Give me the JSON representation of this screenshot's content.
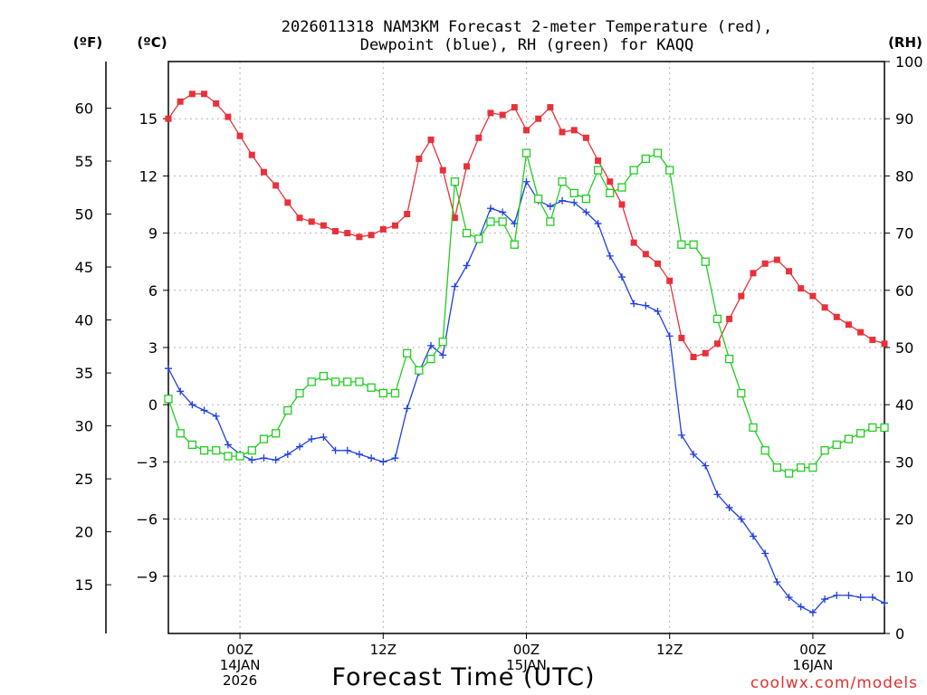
{
  "chart_data": {
    "type": "line",
    "title_line1": "2026011318 NAM3KM Forecast 2-meter Temperature (red),",
    "title_line2": "Dewpoint (blue), RH (green) for KAQQ",
    "xlabel": "Forecast Time (UTC)",
    "credit": "coolwx.com/models",
    "units": {
      "fahrenheit": "(ºF)",
      "celsius": "(ºC)",
      "rh": "(RH)"
    },
    "x_hours_range": [
      -6,
      54
    ],
    "x_ticks": [
      {
        "hour": 0,
        "lines": [
          "00Z",
          "14JAN",
          "2026"
        ]
      },
      {
        "hour": 12,
        "lines": [
          "12Z"
        ]
      },
      {
        "hour": 24,
        "lines": [
          "00Z",
          "15JAN"
        ]
      },
      {
        "hour": 36,
        "lines": [
          "12Z"
        ]
      },
      {
        "hour": 48,
        "lines": [
          "00Z",
          "16JAN"
        ]
      }
    ],
    "y_celsius_range": [
      -12,
      18
    ],
    "y_celsius_ticks": [
      "15",
      "12",
      "9",
      "6",
      "3",
      "0",
      "-3",
      "-6",
      "-9"
    ],
    "y_fahrenheit_ticks": [
      "60",
      "55",
      "50",
      "45",
      "40",
      "35",
      "30",
      "25",
      "20",
      "15"
    ],
    "y_rh_range": [
      0,
      100
    ],
    "y_rh_ticks": [
      "100",
      "90",
      "80",
      "70",
      "60",
      "50",
      "40",
      "30",
      "20",
      "10",
      "0"
    ],
    "series": [
      {
        "name": "Temperature",
        "unit": "C",
        "color": "#e8313a",
        "marker": "filled-square",
        "x": [
          -6,
          -5,
          -4,
          -3,
          -2,
          -1,
          0,
          1,
          2,
          3,
          4,
          5,
          6,
          7,
          8,
          9,
          10,
          11,
          12,
          13,
          14,
          15,
          16,
          17,
          18,
          19,
          20,
          21,
          22,
          23,
          24,
          25,
          26,
          27,
          28,
          29,
          30,
          31,
          32,
          33,
          34,
          35,
          36,
          37,
          38,
          39,
          40,
          41,
          42,
          43,
          44,
          45,
          46,
          47,
          48,
          49,
          50,
          51,
          52,
          53,
          54
        ],
        "values": [
          15.0,
          15.9,
          16.3,
          16.3,
          15.8,
          15.1,
          14.1,
          13.1,
          12.2,
          11.5,
          10.6,
          9.8,
          9.6,
          9.4,
          9.1,
          9.0,
          8.8,
          8.9,
          9.2,
          9.4,
          10.0,
          12.9,
          13.9,
          12.3,
          9.8,
          12.5,
          14.0,
          15.3,
          15.2,
          15.6,
          14.4,
          15.0,
          15.6,
          14.3,
          14.4,
          14.0,
          12.8,
          11.7,
          10.5,
          8.5,
          7.9,
          7.4,
          6.5,
          3.5,
          2.5,
          2.7,
          3.2,
          4.5,
          5.7,
          6.9,
          7.4,
          7.6,
          7.0,
          6.1,
          5.7,
          5.1,
          4.6,
          4.2,
          3.8,
          3.4,
          3.2
        ]
      },
      {
        "name": "Dewpoint",
        "unit": "C",
        "color": "#1f3fe0",
        "marker": "plus",
        "x": [
          -6,
          -5,
          -4,
          -3,
          -2,
          -1,
          0,
          1,
          2,
          3,
          4,
          5,
          6,
          7,
          8,
          9,
          10,
          11,
          12,
          13,
          14,
          15,
          16,
          17,
          18,
          19,
          20,
          21,
          22,
          23,
          24,
          25,
          26,
          27,
          28,
          29,
          30,
          31,
          32,
          33,
          34,
          35,
          36,
          37,
          38,
          39,
          40,
          41,
          42,
          43,
          44,
          45,
          46,
          47,
          48,
          49,
          50,
          51,
          52,
          53,
          54
        ],
        "values": [
          1.9,
          0.7,
          0.0,
          -0.3,
          -0.6,
          -2.1,
          -2.6,
          -2.9,
          -2.8,
          -2.9,
          -2.6,
          -2.2,
          -1.8,
          -1.7,
          -2.4,
          -2.4,
          -2.6,
          -2.8,
          -3.0,
          -2.8,
          -0.2,
          1.7,
          3.1,
          2.6,
          6.2,
          7.3,
          8.7,
          10.3,
          10.1,
          9.5,
          11.7,
          10.7,
          10.4,
          10.7,
          10.6,
          10.1,
          9.5,
          7.8,
          6.7,
          5.3,
          5.2,
          4.9,
          3.6,
          -1.6,
          -2.6,
          -3.2,
          -4.7,
          -5.4,
          -6.0,
          -6.9,
          -7.8,
          -9.3,
          -10.1,
          -10.6,
          -10.9,
          -10.2,
          -10.0,
          -10.0,
          -10.1,
          -10.1,
          -10.4
        ]
      },
      {
        "name": "RH",
        "unit": "%",
        "color": "#22cc22",
        "marker": "open-square",
        "x": [
          -6,
          -5,
          -4,
          -3,
          -2,
          -1,
          0,
          1,
          2,
          3,
          4,
          5,
          6,
          7,
          8,
          9,
          10,
          11,
          12,
          13,
          14,
          15,
          16,
          17,
          18,
          19,
          20,
          21,
          22,
          23,
          24,
          25,
          26,
          27,
          28,
          29,
          30,
          31,
          32,
          33,
          34,
          35,
          36,
          37,
          38,
          39,
          40,
          41,
          42,
          43,
          44,
          45,
          46,
          47,
          48,
          49,
          50,
          51,
          52,
          53,
          54
        ],
        "values": [
          41,
          35,
          33,
          32,
          32,
          31,
          31,
          32,
          34,
          35,
          39,
          42,
          44,
          45,
          44,
          44,
          44,
          43,
          42,
          42,
          49,
          46,
          48,
          51,
          79,
          70,
          69,
          72,
          72,
          68,
          84,
          76,
          72,
          79,
          77,
          76,
          81,
          77,
          78,
          81,
          83,
          84,
          81,
          68,
          68,
          65,
          55,
          48,
          42,
          36,
          32,
          29,
          28,
          29,
          29,
          32,
          33,
          34,
          35,
          36,
          36
        ]
      }
    ]
  }
}
